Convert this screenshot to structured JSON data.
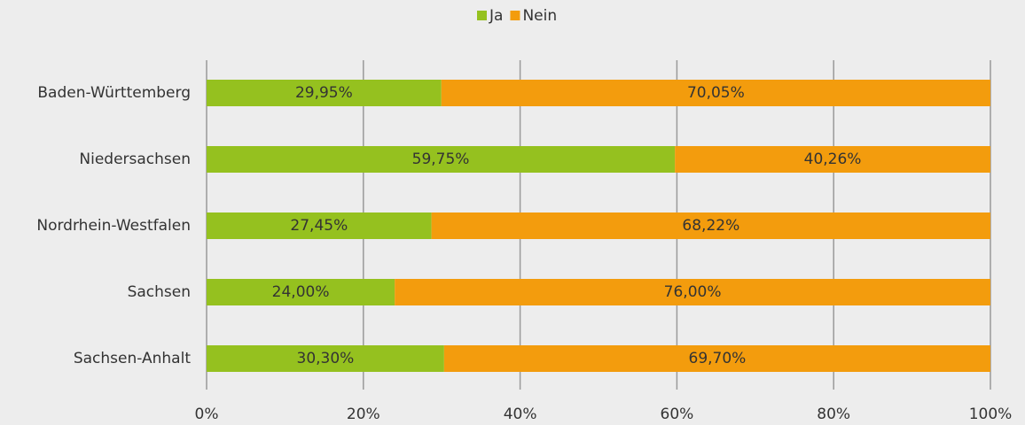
{
  "chart_data": {
    "type": "bar",
    "orientation": "horizontal",
    "stack": "percent",
    "categories": [
      "Baden-Württemberg",
      "Niedersachsen",
      "Nordrhein-Westfalen",
      "Sachsen",
      "Sachsen-Anhalt"
    ],
    "series": [
      {
        "name": "Ja",
        "color": "#95c11f",
        "values": [
          29.95,
          59.75,
          27.45,
          24.0,
          30.3
        ],
        "value_labels": [
          "29,95%",
          "59,75%",
          "27,45%",
          "24,00%",
          "30,30%"
        ]
      },
      {
        "name": "Nein",
        "color": "#f39c0d",
        "values": [
          70.05,
          40.26,
          68.22,
          76.0,
          69.7
        ],
        "value_labels": [
          "70,05%",
          "40,26%",
          "68,22%",
          "76,00%",
          "69,70%"
        ]
      }
    ],
    "xlim": [
      0,
      100
    ],
    "xticks": [
      {
        "value": 0,
        "label": "0%"
      },
      {
        "value": 20,
        "label": "20%"
      },
      {
        "value": 40,
        "label": "40%"
      },
      {
        "value": 60,
        "label": "60%"
      },
      {
        "value": 80,
        "label": "80%"
      },
      {
        "value": 100,
        "label": "100%"
      }
    ],
    "grid": true,
    "legend": "top"
  }
}
